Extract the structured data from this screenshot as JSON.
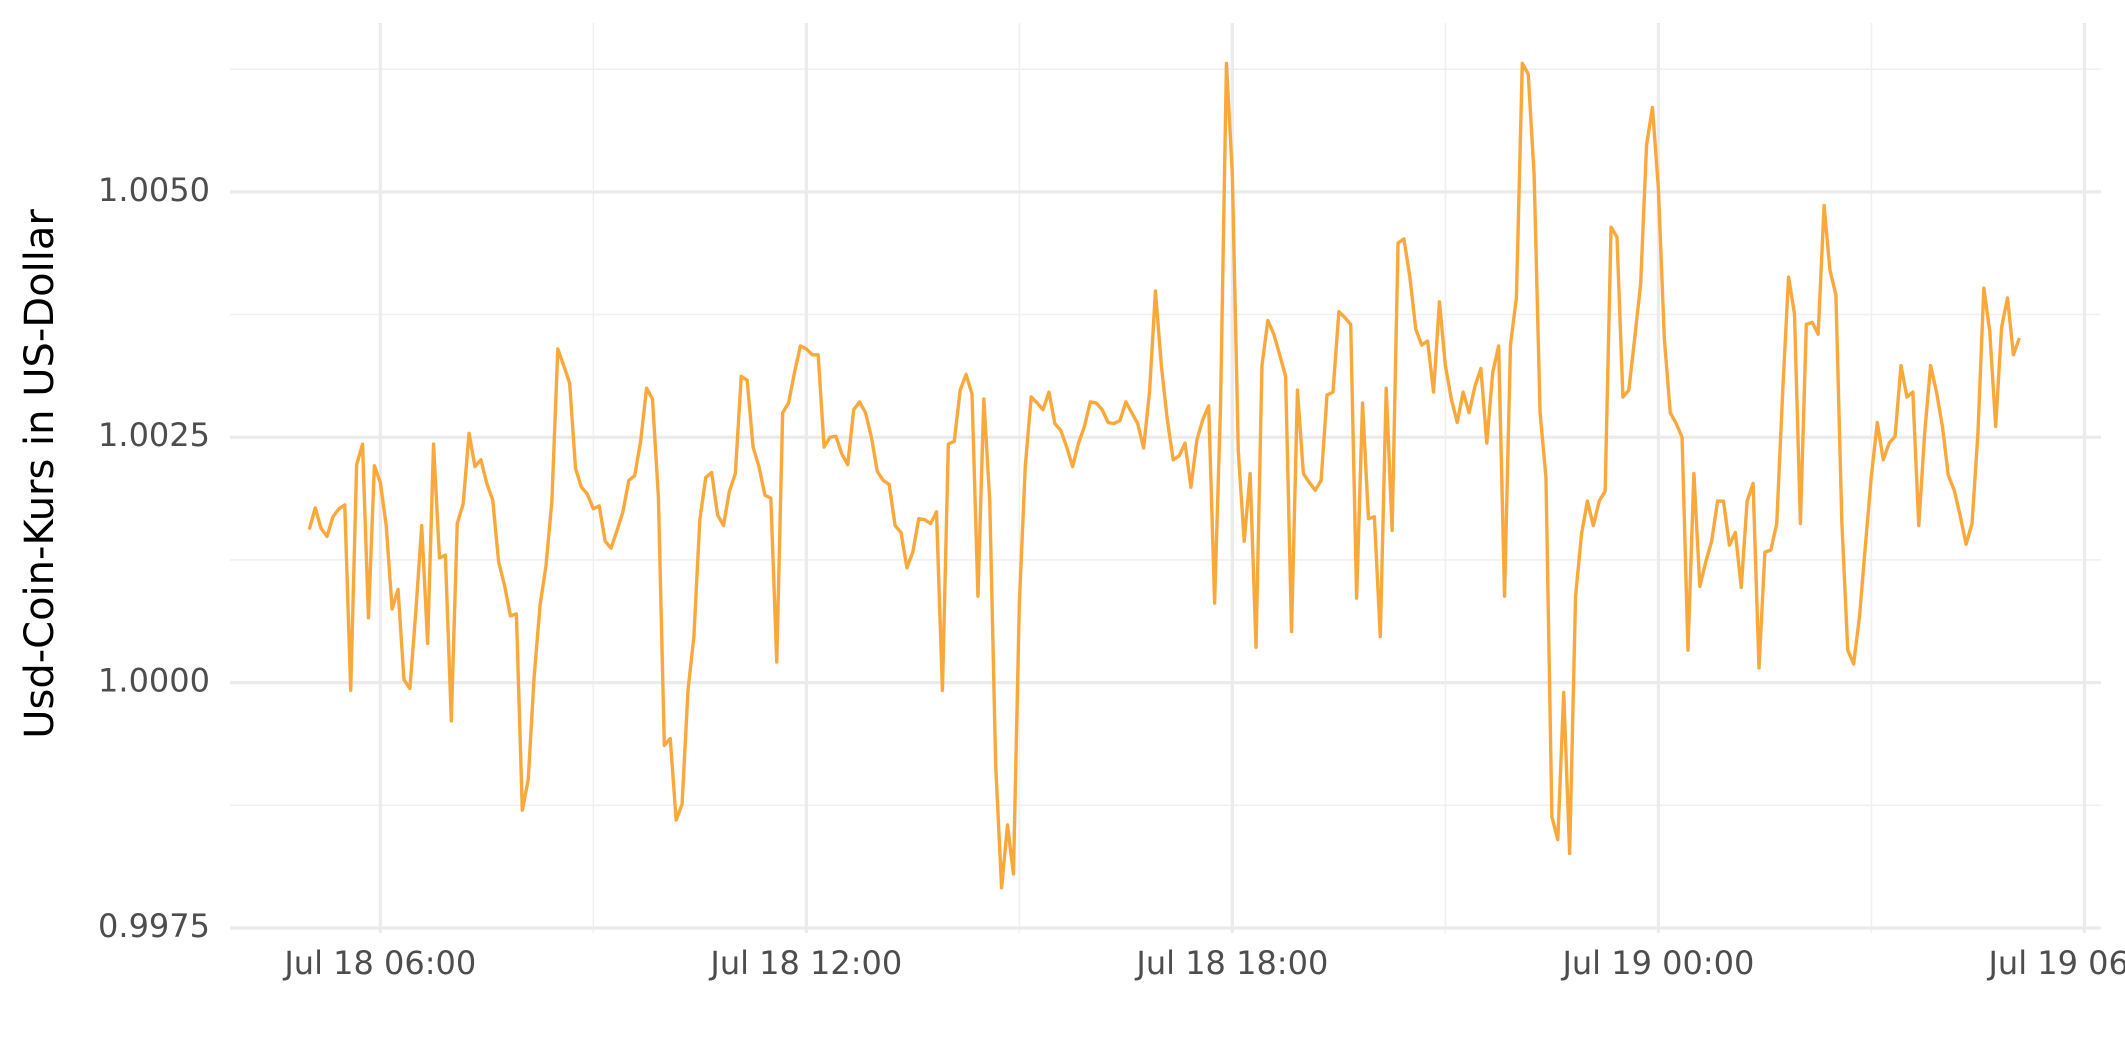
{
  "chart_data": {
    "type": "line",
    "y_label": "Usd-Coin-Kurs in US-Dollar",
    "color": "#f9a93b",
    "grid": true,
    "xlim": [
      "Jul 18 03:53",
      "Jul 19 06:14"
    ],
    "xticks": [
      "Jul 18 06:00",
      "Jul 18 12:00",
      "Jul 18 18:00",
      "Jul 19 00:00",
      "Jul 19 06:00"
    ],
    "ylim": [
      0.9975,
      1.0067
    ],
    "yticks": [
      0.9975,
      {
        "value": 1,
        "label": "1.0000"
      },
      {
        "value": 1.0025,
        "label": "1.0025"
      },
      {
        "value": 1.005,
        "label": "1.0050"
      }
    ],
    "x": [
      "Jul 18 05:00",
      "Jul 18 05:05",
      "Jul 18 05:10",
      "Jul 18 05:15",
      "Jul 18 05:20",
      "Jul 18 05:25",
      "Jul 18 05:30",
      "Jul 18 05:35",
      "Jul 18 05:40",
      "Jul 18 05:45",
      "Jul 18 05:50",
      "Jul 18 05:55",
      "Jul 18 06:00",
      "Jul 18 06:05",
      "Jul 18 06:10",
      "Jul 18 06:15",
      "Jul 18 06:20",
      "Jul 18 06:25",
      "Jul 18 06:30",
      "Jul 18 06:35",
      "Jul 18 06:40",
      "Jul 18 06:45",
      "Jul 18 06:50",
      "Jul 18 06:55",
      "Jul 18 07:00",
      "Jul 18 07:05",
      "Jul 18 07:10",
      "Jul 18 07:15",
      "Jul 18 07:20",
      "Jul 18 07:25",
      "Jul 18 07:30",
      "Jul 18 07:35",
      "Jul 18 07:40",
      "Jul 18 07:45",
      "Jul 18 07:50",
      "Jul 18 07:55",
      "Jul 18 08:00",
      "Jul 18 08:05",
      "Jul 18 08:10",
      "Jul 18 08:15",
      "Jul 18 08:20",
      "Jul 18 08:25",
      "Jul 18 08:30",
      "Jul 18 08:35",
      "Jul 18 08:40",
      "Jul 18 08:45",
      "Jul 18 08:50",
      "Jul 18 08:55",
      "Jul 18 09:00",
      "Jul 18 09:05",
      "Jul 18 09:10",
      "Jul 18 09:15",
      "Jul 18 09:20",
      "Jul 18 09:25",
      "Jul 18 09:30",
      "Jul 18 09:35",
      "Jul 18 09:40",
      "Jul 18 09:45",
      "Jul 18 09:50",
      "Jul 18 09:55",
      "Jul 18 10:00",
      "Jul 18 10:05",
      "Jul 18 10:10",
      "Jul 18 10:15",
      "Jul 18 10:20",
      "Jul 18 10:25",
      "Jul 18 10:30",
      "Jul 18 10:35",
      "Jul 18 10:40",
      "Jul 18 10:45",
      "Jul 18 10:50",
      "Jul 18 10:55",
      "Jul 18 11:00",
      "Jul 18 11:05",
      "Jul 18 11:10",
      "Jul 18 11:15",
      "Jul 18 11:20",
      "Jul 18 11:25",
      "Jul 18 11:30",
      "Jul 18 11:35",
      "Jul 18 11:40",
      "Jul 18 11:45",
      "Jul 18 11:50",
      "Jul 18 11:55",
      "Jul 18 12:00",
      "Jul 18 12:05",
      "Jul 18 12:10",
      "Jul 18 12:15",
      "Jul 18 12:20",
      "Jul 18 12:25",
      "Jul 18 12:30",
      "Jul 18 12:35",
      "Jul 18 12:40",
      "Jul 18 12:45",
      "Jul 18 12:50",
      "Jul 18 12:55",
      "Jul 18 13:00",
      "Jul 18 13:05",
      "Jul 18 13:10",
      "Jul 18 13:15",
      "Jul 18 13:20",
      "Jul 18 13:25",
      "Jul 18 13:30",
      "Jul 18 13:35",
      "Jul 18 13:40",
      "Jul 18 13:45",
      "Jul 18 13:50",
      "Jul 18 13:55",
      "Jul 18 14:00",
      "Jul 18 14:05",
      "Jul 18 14:10",
      "Jul 18 14:15",
      "Jul 18 14:20",
      "Jul 18 14:25",
      "Jul 18 14:30",
      "Jul 18 14:35",
      "Jul 18 14:40",
      "Jul 18 14:45",
      "Jul 18 14:50",
      "Jul 18 14:55",
      "Jul 18 15:00",
      "Jul 18 15:05",
      "Jul 18 15:10",
      "Jul 18 15:15",
      "Jul 18 15:20",
      "Jul 18 15:25",
      "Jul 18 15:30",
      "Jul 18 15:35",
      "Jul 18 15:40",
      "Jul 18 15:45",
      "Jul 18 15:50",
      "Jul 18 15:55",
      "Jul 18 16:00",
      "Jul 18 16:05",
      "Jul 18 16:10",
      "Jul 18 16:15",
      "Jul 18 16:20",
      "Jul 18 16:25",
      "Jul 18 16:30",
      "Jul 18 16:35",
      "Jul 18 16:40",
      "Jul 18 16:45",
      "Jul 18 16:50",
      "Jul 18 16:55",
      "Jul 18 17:00",
      "Jul 18 17:05",
      "Jul 18 17:10",
      "Jul 18 17:15",
      "Jul 18 17:20",
      "Jul 18 17:25",
      "Jul 18 17:30",
      "Jul 18 17:35",
      "Jul 18 17:40",
      "Jul 18 17:45",
      "Jul 18 17:50",
      "Jul 18 17:55",
      "Jul 18 18:00",
      "Jul 18 18:05",
      "Jul 18 18:10",
      "Jul 18 18:15",
      "Jul 18 18:20",
      "Jul 18 18:25",
      "Jul 18 18:30",
      "Jul 18 18:35",
      "Jul 18 18:40",
      "Jul 18 18:45",
      "Jul 18 18:50",
      "Jul 18 18:55",
      "Jul 18 19:00",
      "Jul 18 19:05",
      "Jul 18 19:10",
      "Jul 18 19:15",
      "Jul 18 19:20",
      "Jul 18 19:25",
      "Jul 18 19:30",
      "Jul 18 19:35",
      "Jul 18 19:40",
      "Jul 18 19:45",
      "Jul 18 19:50",
      "Jul 18 19:55",
      "Jul 18 20:00",
      "Jul 18 20:05",
      "Jul 18 20:10",
      "Jul 18 20:15",
      "Jul 18 20:20",
      "Jul 18 20:25",
      "Jul 18 20:30",
      "Jul 18 20:35",
      "Jul 18 20:40",
      "Jul 18 20:45",
      "Jul 18 20:50",
      "Jul 18 20:55",
      "Jul 18 21:00",
      "Jul 18 21:05",
      "Jul 18 21:10",
      "Jul 18 21:15",
      "Jul 18 21:20",
      "Jul 18 21:25",
      "Jul 18 21:30",
      "Jul 18 21:35",
      "Jul 18 21:40",
      "Jul 18 21:45",
      "Jul 18 21:50",
      "Jul 18 21:55",
      "Jul 18 22:00",
      "Jul 18 22:05",
      "Jul 18 22:10",
      "Jul 18 22:15",
      "Jul 18 22:20",
      "Jul 18 22:25",
      "Jul 18 22:30",
      "Jul 18 22:35",
      "Jul 18 22:40",
      "Jul 18 22:45",
      "Jul 18 22:50",
      "Jul 18 22:55",
      "Jul 18 23:00",
      "Jul 18 23:05",
      "Jul 18 23:10",
      "Jul 18 23:15",
      "Jul 18 23:20",
      "Jul 18 23:25",
      "Jul 18 23:30",
      "Jul 18 23:35",
      "Jul 18 23:40",
      "Jul 18 23:45",
      "Jul 18 23:50",
      "Jul 18 23:55",
      "Jul 19 00:00",
      "Jul 19 00:05",
      "Jul 19 00:10",
      "Jul 19 00:15",
      "Jul 19 00:20",
      "Jul 19 00:25",
      "Jul 19 00:30",
      "Jul 19 00:35",
      "Jul 19 00:40",
      "Jul 19 00:45",
      "Jul 19 00:50",
      "Jul 19 00:55",
      "Jul 19 01:00",
      "Jul 19 01:05",
      "Jul 19 01:10",
      "Jul 19 01:15",
      "Jul 19 01:20",
      "Jul 19 01:25",
      "Jul 19 01:30",
      "Jul 19 01:35",
      "Jul 19 01:40",
      "Jul 19 01:45",
      "Jul 19 01:50",
      "Jul 19 01:55",
      "Jul 19 02:00",
      "Jul 19 02:05",
      "Jul 19 02:10",
      "Jul 19 02:15",
      "Jul 19 02:20",
      "Jul 19 02:25",
      "Jul 19 02:30",
      "Jul 19 02:35",
      "Jul 19 02:40",
      "Jul 19 02:45",
      "Jul 19 02:50",
      "Jul 19 02:55",
      "Jul 19 03:00",
      "Jul 19 03:05",
      "Jul 19 03:10",
      "Jul 19 03:15",
      "Jul 19 03:20",
      "Jul 19 03:25",
      "Jul 19 03:30",
      "Jul 19 03:35",
      "Jul 19 03:40",
      "Jul 19 03:45",
      "Jul 19 03:50",
      "Jul 19 03:55",
      "Jul 19 04:00",
      "Jul 19 04:05",
      "Jul 19 04:10",
      "Jul 19 04:15",
      "Jul 19 04:20",
      "Jul 19 04:25",
      "Jul 19 04:30",
      "Jul 19 04:35",
      "Jul 19 04:40",
      "Jul 19 04:45",
      "Jul 19 04:50",
      "Jul 19 04:55",
      "Jul 19 05:00",
      "Jul 19 05:05"
    ],
    "values": [
      1.00156,
      1.00178,
      1.00157,
      1.00149,
      1.00169,
      1.00177,
      1.00181,
      0.99992,
      1.00222,
      1.00243,
      1.00066,
      1.00221,
      1.00204,
      1.0016,
      1.00075,
      1.00095,
      1.00003,
      0.99994,
      1.00072,
      1.0016,
      1.0004,
      1.00243,
      1.00127,
      1.0013,
      0.99961,
      1.00162,
      1.00182,
      1.00254,
      1.0022,
      1.00227,
      1.00203,
      1.00186,
      1.00123,
      1.00099,
      1.00068,
      1.0007,
      0.9987,
      0.99901,
      1.00006,
      1.00079,
      1.00119,
      1.00185,
      1.0034,
      1.00323,
      1.00305,
      1.00218,
      1.00199,
      1.00192,
      1.00177,
      1.0018,
      1.00144,
      1.00137,
      1.00155,
      1.00174,
      1.00206,
      1.00211,
      1.00246,
      1.003,
      1.00289,
      1.00189,
      0.99936,
      0.99943,
      0.9986,
      0.99876,
      0.99992,
      1.00047,
      1.00166,
      1.00209,
      1.00214,
      1.00171,
      1.0016,
      1.00195,
      1.00213,
      1.00312,
      1.00308,
      1.0024,
      1.0022,
      1.00191,
      1.00188,
      1.00021,
      1.00275,
      1.00285,
      1.00316,
      1.00343,
      1.0034,
      1.00334,
      1.00334,
      1.0024,
      1.0025,
      1.00251,
      1.00233,
      1.00222,
      1.00278,
      1.00286,
      1.00275,
      1.0025,
      1.00215,
      1.00206,
      1.00202,
      1.0016,
      1.00153,
      1.00117,
      1.00133,
      1.00167,
      1.00166,
      1.00162,
      1.00174,
      0.99992,
      1.00243,
      1.00246,
      1.00298,
      1.00314,
      1.00294,
      1.00088,
      1.00289,
      1.00185,
      0.99916,
      0.99791,
      0.99855,
      0.99805,
      1.00081,
      1.0022,
      1.00291,
      1.00285,
      1.00278,
      1.00296,
      1.00264,
      1.00257,
      1.0024,
      1.0022,
      1.00244,
      1.00261,
      1.00286,
      1.00285,
      1.00278,
      1.00265,
      1.00264,
      1.00267,
      1.00286,
      1.00275,
      1.00264,
      1.00239,
      1.00296,
      1.00399,
      1.00323,
      1.00268,
      1.00227,
      1.00231,
      1.00244,
      1.00199,
      1.00247,
      1.00268,
      1.00282,
      1.00081,
      1.00282,
      1.00631,
      1.00517,
      1.00236,
      1.00144,
      1.00213,
      1.00036,
      1.00323,
      1.00369,
      1.00355,
      1.00334,
      1.00312,
      1.00052,
      1.00298,
      1.00213,
      1.00204,
      1.00196,
      1.00206,
      1.00293,
      1.00296,
      1.00378,
      1.00372,
      1.00365,
      1.00086,
      1.00285,
      1.00167,
      1.00169,
      1.00047,
      1.003,
      1.00155,
      1.00448,
      1.00452,
      1.00413,
      1.0036,
      1.00344,
      1.00348,
      1.00296,
      1.00388,
      1.00323,
      1.00289,
      1.00265,
      1.00296,
      1.00275,
      1.00302,
      1.0032,
      1.00244,
      1.00316,
      1.00343,
      1.00088,
      1.00344,
      1.00392,
      1.00631,
      1.0062,
      1.00517,
      1.00275,
      1.00209,
      0.99863,
      0.9984,
      0.9999,
      0.99826,
      1.00088,
      1.00151,
      1.00185,
      1.0016,
      1.00185,
      1.00195,
      1.00464,
      1.00454,
      1.00291,
      1.00298,
      1.00351,
      1.00406,
      1.00548,
      1.00586,
      1.00503,
      1.00351,
      1.00275,
      1.00264,
      1.0025,
      1.00033,
      1.00213,
      1.00098,
      1.00123,
      1.00144,
      1.00185,
      1.00185,
      1.0014,
      1.00153,
      1.00097,
      1.00185,
      1.00203,
      1.00015,
      1.00133,
      1.00135,
      1.00162,
      1.00296,
      1.00413,
      1.00376,
      1.00162,
      1.00365,
      1.00367,
      1.00355,
      1.00486,
      1.0042,
      1.00395,
      1.00164,
      1.00033,
      1.00019,
      1.00068,
      1.00141,
      1.00211,
      1.00265,
      1.00227,
      1.00244,
      1.00251,
      1.00323,
      1.00291,
      1.00296,
      1.0016,
      1.00254,
      1.00323,
      1.00296,
      1.00261,
      1.00211,
      1.00196,
      1.0017,
      1.00141,
      1.00162,
      1.00254,
      1.00402,
      1.00358,
      1.00261,
      1.00362,
      1.00392,
      1.00334,
      1.00351
    ]
  }
}
